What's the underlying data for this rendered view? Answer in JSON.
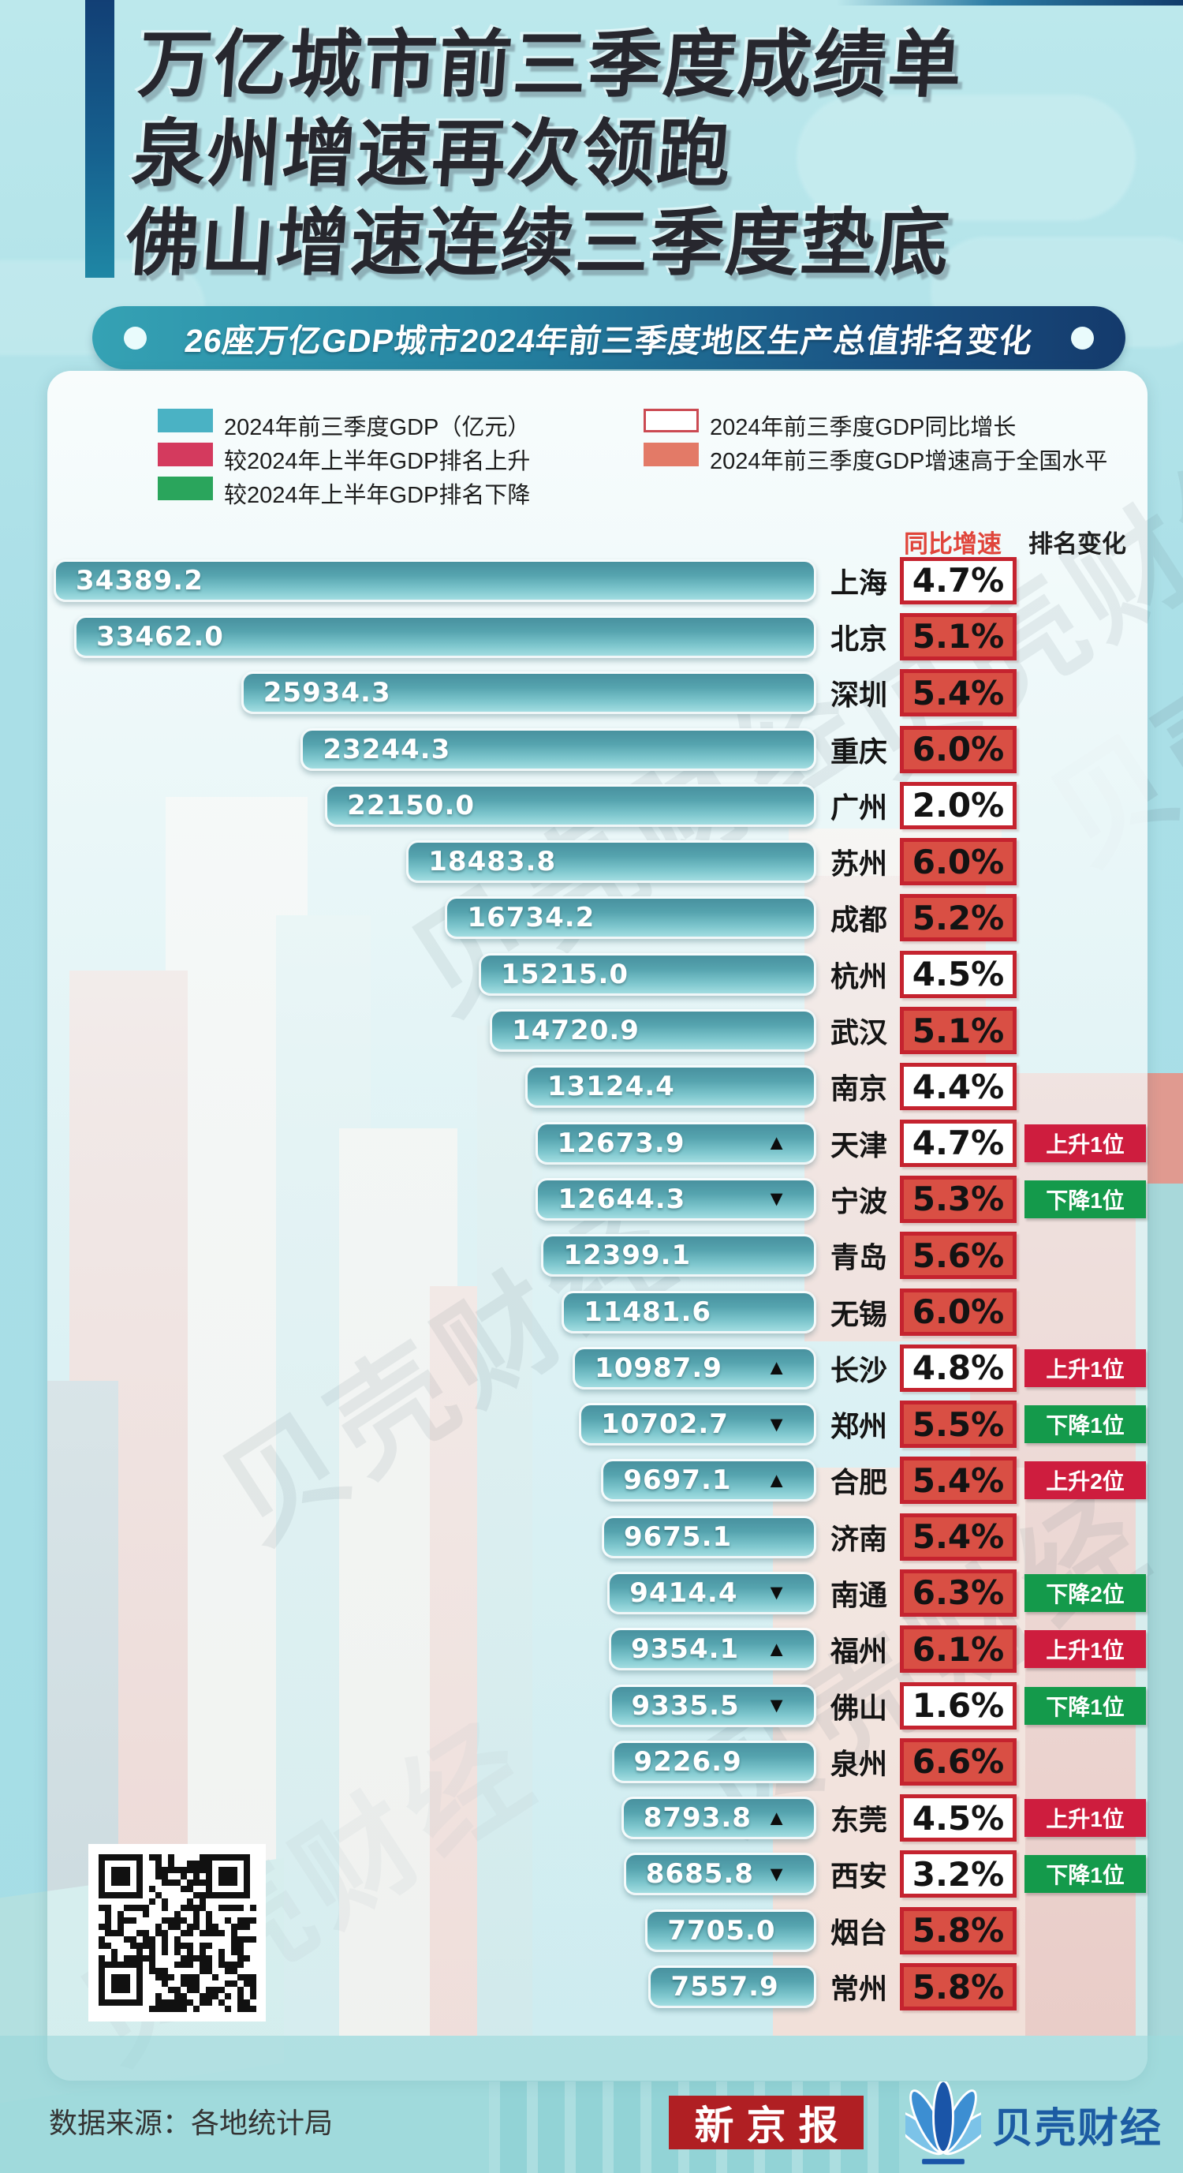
{
  "title": {
    "lines": [
      "万亿城市前三季度成绩单",
      "泉州增速再次领跑",
      "佛山增速连续三季度垫底"
    ]
  },
  "banner": {
    "text": "26座万亿GDP城市2024年前三季度地区生产总值排名变化"
  },
  "legend": {
    "left": [
      {
        "label": "2024年前三季度GDP（亿元）",
        "swatch": "teal",
        "color": "#4ab2c4"
      },
      {
        "label": "较2024年上半年GDP排名上升",
        "swatch": "crimson",
        "color": "#d43a5e"
      },
      {
        "label": "较2024年上半年GDP排名下降",
        "swatch": "green",
        "color": "#2aa55c"
      }
    ],
    "right": [
      {
        "label": "2024年前三季度GDP同比增长",
        "swatch": "white-red-border",
        "color": "#ffffff"
      },
      {
        "label": "2024年前三季度GDP增速高于全国水平",
        "swatch": "salmon",
        "color": "#e37a67"
      }
    ]
  },
  "columns": {
    "growth": "同比增速",
    "rank": "排名变化"
  },
  "chart_data": {
    "type": "bar",
    "title": "26座万亿GDP城市2024年前三季度地区生产总值排名变化",
    "unit": "亿元",
    "xlim": [
      0,
      34389.2
    ],
    "orientation": "horizontal",
    "rows": [
      {
        "city": "上海",
        "gdp": 34389.2,
        "value": "34389.2",
        "growth": "4.7%",
        "above_national": false,
        "rank_dir": "",
        "rank_label": ""
      },
      {
        "city": "北京",
        "gdp": 33462.0,
        "value": "33462.0",
        "growth": "5.1%",
        "above_national": true,
        "rank_dir": "",
        "rank_label": ""
      },
      {
        "city": "深圳",
        "gdp": 25934.3,
        "value": "25934.3",
        "growth": "5.4%",
        "above_national": true,
        "rank_dir": "",
        "rank_label": ""
      },
      {
        "city": "重庆",
        "gdp": 23244.3,
        "value": "23244.3",
        "growth": "6.0%",
        "above_national": true,
        "rank_dir": "",
        "rank_label": ""
      },
      {
        "city": "广州",
        "gdp": 22150.0,
        "value": "22150.0",
        "growth": "2.0%",
        "above_national": false,
        "rank_dir": "",
        "rank_label": ""
      },
      {
        "city": "苏州",
        "gdp": 18483.8,
        "value": "18483.8",
        "growth": "6.0%",
        "above_national": true,
        "rank_dir": "",
        "rank_label": ""
      },
      {
        "city": "成都",
        "gdp": 16734.2,
        "value": "16734.2",
        "growth": "5.2%",
        "above_national": true,
        "rank_dir": "",
        "rank_label": ""
      },
      {
        "city": "杭州",
        "gdp": 15215.0,
        "value": "15215.0",
        "growth": "4.5%",
        "above_national": false,
        "rank_dir": "",
        "rank_label": ""
      },
      {
        "city": "武汉",
        "gdp": 14720.9,
        "value": "14720.9",
        "growth": "5.1%",
        "above_national": true,
        "rank_dir": "",
        "rank_label": ""
      },
      {
        "city": "南京",
        "gdp": 13124.4,
        "value": "13124.4",
        "growth": "4.4%",
        "above_national": false,
        "rank_dir": "",
        "rank_label": ""
      },
      {
        "city": "天津",
        "gdp": 12673.9,
        "value": "12673.9",
        "growth": "4.7%",
        "above_national": false,
        "rank_dir": "up",
        "rank_label": "上升1位"
      },
      {
        "city": "宁波",
        "gdp": 12644.3,
        "value": "12644.3",
        "growth": "5.3%",
        "above_national": true,
        "rank_dir": "down",
        "rank_label": "下降1位"
      },
      {
        "city": "青岛",
        "gdp": 12399.1,
        "value": "12399.1",
        "growth": "5.6%",
        "above_national": true,
        "rank_dir": "",
        "rank_label": ""
      },
      {
        "city": "无锡",
        "gdp": 11481.6,
        "value": "11481.6",
        "growth": "6.0%",
        "above_national": true,
        "rank_dir": "",
        "rank_label": ""
      },
      {
        "city": "长沙",
        "gdp": 10987.9,
        "value": "10987.9",
        "growth": "4.8%",
        "above_national": false,
        "rank_dir": "up",
        "rank_label": "上升1位"
      },
      {
        "city": "郑州",
        "gdp": 10702.7,
        "value": "10702.7",
        "growth": "5.5%",
        "above_national": true,
        "rank_dir": "down",
        "rank_label": "下降1位"
      },
      {
        "city": "合肥",
        "gdp": 9697.1,
        "value": "9697.1",
        "growth": "5.4%",
        "above_national": true,
        "rank_dir": "up",
        "rank_label": "上升2位"
      },
      {
        "city": "济南",
        "gdp": 9675.1,
        "value": "9675.1",
        "growth": "5.4%",
        "above_national": true,
        "rank_dir": "",
        "rank_label": ""
      },
      {
        "city": "南通",
        "gdp": 9414.4,
        "value": "9414.4",
        "growth": "6.3%",
        "above_national": true,
        "rank_dir": "down",
        "rank_label": "下降2位"
      },
      {
        "city": "福州",
        "gdp": 9354.1,
        "value": "9354.1",
        "growth": "6.1%",
        "above_national": true,
        "rank_dir": "up",
        "rank_label": "上升1位"
      },
      {
        "city": "佛山",
        "gdp": 9335.5,
        "value": "9335.5",
        "growth": "1.6%",
        "above_national": false,
        "rank_dir": "down",
        "rank_label": "下降1位"
      },
      {
        "city": "泉州",
        "gdp": 9226.9,
        "value": "9226.9",
        "growth": "6.6%",
        "above_national": true,
        "rank_dir": "",
        "rank_label": ""
      },
      {
        "city": "东莞",
        "gdp": 8793.8,
        "value": "8793.8",
        "growth": "4.5%",
        "above_national": false,
        "rank_dir": "up",
        "rank_label": "上升1位"
      },
      {
        "city": "西安",
        "gdp": 8685.8,
        "value": "8685.8",
        "growth": "3.2%",
        "above_national": false,
        "rank_dir": "down",
        "rank_label": "下降1位"
      },
      {
        "city": "烟台",
        "gdp": 7705.0,
        "value": "7705.0",
        "growth": "5.8%",
        "above_national": true,
        "rank_dir": "",
        "rank_label": ""
      },
      {
        "city": "常州",
        "gdp": 7557.9,
        "value": "7557.9",
        "growth": "5.8%",
        "above_national": true,
        "rank_dir": "",
        "rank_label": ""
      }
    ]
  },
  "icons": {
    "up": "▲",
    "down": "▼"
  },
  "watermark": "贝壳财经",
  "footer": {
    "source": "数据来源：各地统计局",
    "logo_xjb": "新京报",
    "logo_bk": "贝壳财经"
  },
  "colors": {
    "bar_top": "#48919f",
    "bar_bottom": "#a2dde1",
    "growth_border": "#c5232f",
    "growth_hot_fill": "#d94f44",
    "badge_up": "#ce1d3e",
    "badge_down": "#149a4b",
    "banner_left": "#35a2b4",
    "banner_right": "#143a6c",
    "header_growth": "#e0453b",
    "xjb_red": "#b01f23",
    "bk_blue": "#1c5ca3"
  }
}
